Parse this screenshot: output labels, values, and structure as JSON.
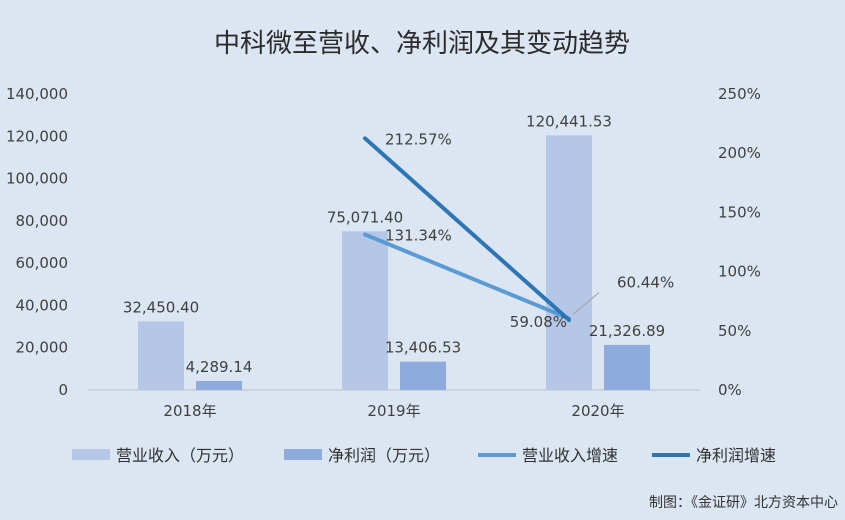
{
  "colors": {
    "revenue_bar": "#b4c7e7",
    "profit_bar": "#8faadc",
    "revenue_growth_line": "#5b9bd5",
    "profit_growth_line": "#2e75b6",
    "background": "#dce6f2"
  },
  "credit": "制图：《金证研》北方资本中心",
  "chart_data": {
    "type": "bar",
    "title": "中科微至营收、净利润及其变动趋势",
    "categories": [
      "2018年",
      "2019年",
      "2020年"
    ],
    "y_left": {
      "min": 0,
      "max": 140000,
      "step": 20000,
      "tick_labels": [
        "0",
        "20,000",
        "40,000",
        "60,000",
        "80,000",
        "100,000",
        "120,000",
        "140,000"
      ]
    },
    "y_right": {
      "min": 0,
      "max": 250,
      "step": 50,
      "tick_labels": [
        "0%",
        "50%",
        "100%",
        "150%",
        "200%",
        "250%"
      ]
    },
    "grid": false,
    "legend_position": "bottom",
    "series": [
      {
        "name": "营业收入（万元）",
        "kind": "bar",
        "axis": "left",
        "values": [
          32450.4,
          75071.4,
          120441.53
        ],
        "labels": [
          "32,450.40",
          "75,071.40",
          "120,441.53"
        ]
      },
      {
        "name": "净利润（万元）",
        "kind": "bar",
        "axis": "left",
        "values": [
          4289.14,
          13406.53,
          21326.89
        ],
        "labels": [
          "4,289.14",
          "13,406.53",
          "21,326.89"
        ]
      },
      {
        "name": "营业收入增速",
        "kind": "line",
        "axis": "right",
        "values": [
          null,
          131.34,
          60.44
        ],
        "labels": [
          "",
          "131.34%",
          "60.44%"
        ]
      },
      {
        "name": "净利润增速",
        "kind": "line",
        "axis": "right",
        "values": [
          null,
          212.57,
          59.08
        ],
        "labels": [
          "",
          "212.57%",
          "59.08%"
        ]
      }
    ]
  }
}
